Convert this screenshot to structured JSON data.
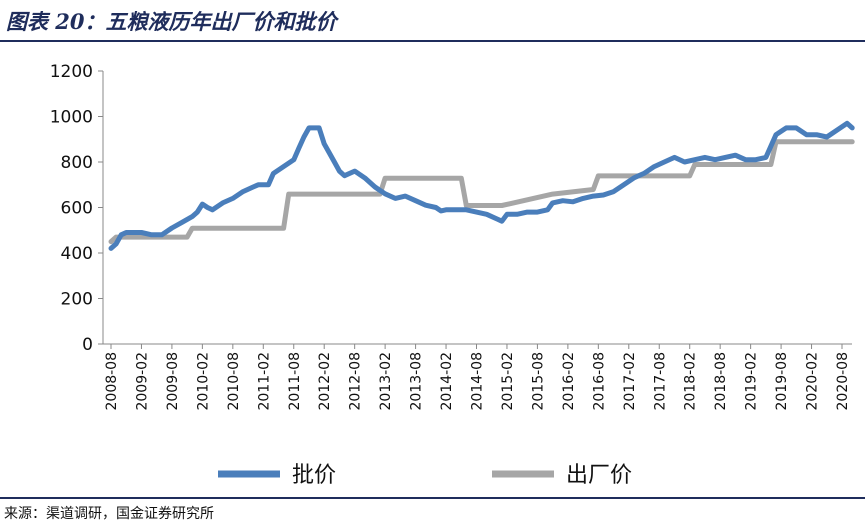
{
  "header": {
    "title": "图表 20：五粮液历年出厂价和批价"
  },
  "footer": {
    "source": "来源：渠道调研，国金证券研究所"
  },
  "chart_data": {
    "type": "line",
    "title": "图表 20：五粮液历年出厂价和批价",
    "xlabel": "",
    "ylabel": "",
    "ylim": [
      0,
      1200
    ],
    "yticks": [
      0,
      200,
      400,
      600,
      800,
      1000,
      1200
    ],
    "xticks": [
      "2008-08",
      "2009-02",
      "2009-08",
      "2010-02",
      "2010-08",
      "2011-02",
      "2011-08",
      "2012-02",
      "2012-08",
      "2013-02",
      "2013-08",
      "2014-02",
      "2014-08",
      "2015-02",
      "2015-08",
      "2016-02",
      "2016-08",
      "2017-02",
      "2017-08",
      "2018-02",
      "2018-08",
      "2019-02",
      "2019-08",
      "2020-02",
      "2020-08"
    ],
    "grid": false,
    "legend_position": "bottom",
    "series": [
      {
        "name": "批价",
        "color": "#4a7ebb",
        "points": [
          [
            "2008-08",
            420
          ],
          [
            "2008-09",
            440
          ],
          [
            "2008-10",
            480
          ],
          [
            "2008-11",
            490
          ],
          [
            "2008-12",
            490
          ],
          [
            "2009-02",
            490
          ],
          [
            "2009-04",
            480
          ],
          [
            "2009-06",
            480
          ],
          [
            "2009-08",
            510
          ],
          [
            "2009-10",
            535
          ],
          [
            "2009-12",
            560
          ],
          [
            "2010-01",
            580
          ],
          [
            "2010-02",
            615
          ],
          [
            "2010-03",
            600
          ],
          [
            "2010-04",
            590
          ],
          [
            "2010-06",
            620
          ],
          [
            "2010-08",
            640
          ],
          [
            "2010-10",
            670
          ],
          [
            "2010-12",
            690
          ],
          [
            "2011-01",
            700
          ],
          [
            "2011-03",
            700
          ],
          [
            "2011-04",
            750
          ],
          [
            "2011-06",
            780
          ],
          [
            "2011-08",
            810
          ],
          [
            "2011-09",
            860
          ],
          [
            "2011-10",
            910
          ],
          [
            "2011-11",
            950
          ],
          [
            "2012-01",
            950
          ],
          [
            "2012-02",
            880
          ],
          [
            "2012-03",
            840
          ],
          [
            "2012-04",
            800
          ],
          [
            "2012-05",
            760
          ],
          [
            "2012-06",
            740
          ],
          [
            "2012-08",
            760
          ],
          [
            "2012-10",
            730
          ],
          [
            "2012-12",
            690
          ],
          [
            "2013-02",
            660
          ],
          [
            "2013-04",
            640
          ],
          [
            "2013-06",
            650
          ],
          [
            "2013-08",
            630
          ],
          [
            "2013-10",
            610
          ],
          [
            "2013-12",
            600
          ],
          [
            "2014-01",
            585
          ],
          [
            "2014-02",
            590
          ],
          [
            "2014-04",
            590
          ],
          [
            "2014-06",
            590
          ],
          [
            "2014-08",
            580
          ],
          [
            "2014-10",
            570
          ],
          [
            "2014-12",
            550
          ],
          [
            "2015-01",
            540
          ],
          [
            "2015-02",
            570
          ],
          [
            "2015-04",
            570
          ],
          [
            "2015-06",
            580
          ],
          [
            "2015-08",
            580
          ],
          [
            "2015-10",
            590
          ],
          [
            "2015-11",
            620
          ],
          [
            "2016-01",
            630
          ],
          [
            "2016-03",
            625
          ],
          [
            "2016-05",
            640
          ],
          [
            "2016-07",
            650
          ],
          [
            "2016-09",
            655
          ],
          [
            "2016-11",
            670
          ],
          [
            "2017-01",
            700
          ],
          [
            "2017-03",
            730
          ],
          [
            "2017-05",
            750
          ],
          [
            "2017-07",
            780
          ],
          [
            "2017-09",
            800
          ],
          [
            "2017-11",
            820
          ],
          [
            "2018-01",
            800
          ],
          [
            "2018-03",
            810
          ],
          [
            "2018-05",
            820
          ],
          [
            "2018-07",
            810
          ],
          [
            "2018-09",
            820
          ],
          [
            "2018-11",
            830
          ],
          [
            "2019-01",
            810
          ],
          [
            "2019-03",
            810
          ],
          [
            "2019-05",
            820
          ],
          [
            "2019-07",
            920
          ],
          [
            "2019-09",
            950
          ],
          [
            "2019-11",
            950
          ],
          [
            "2020-01",
            920
          ],
          [
            "2020-03",
            920
          ],
          [
            "2020-05",
            910
          ],
          [
            "2020-07",
            940
          ],
          [
            "2020-09",
            970
          ],
          [
            "2020-10",
            950
          ]
        ]
      },
      {
        "name": "出厂价",
        "color": "#a6a6a6",
        "points": [
          [
            "2008-08",
            450
          ],
          [
            "2008-09",
            470
          ],
          [
            "2009-11",
            470
          ],
          [
            "2009-12",
            509
          ],
          [
            "2011-06",
            509
          ],
          [
            "2011-07",
            659
          ],
          [
            "2013-01",
            659
          ],
          [
            "2013-02",
            729
          ],
          [
            "2014-05",
            729
          ],
          [
            "2014-06",
            609
          ],
          [
            "2014-12",
            609
          ],
          [
            "2015-01",
            609
          ],
          [
            "2015-11",
            659
          ],
          [
            "2016-07",
            679
          ],
          [
            "2016-08",
            739
          ],
          [
            "2018-02",
            739
          ],
          [
            "2018-03",
            789
          ],
          [
            "2019-06",
            789
          ],
          [
            "2019-07",
            889
          ],
          [
            "2020-10",
            889
          ]
        ]
      }
    ]
  }
}
